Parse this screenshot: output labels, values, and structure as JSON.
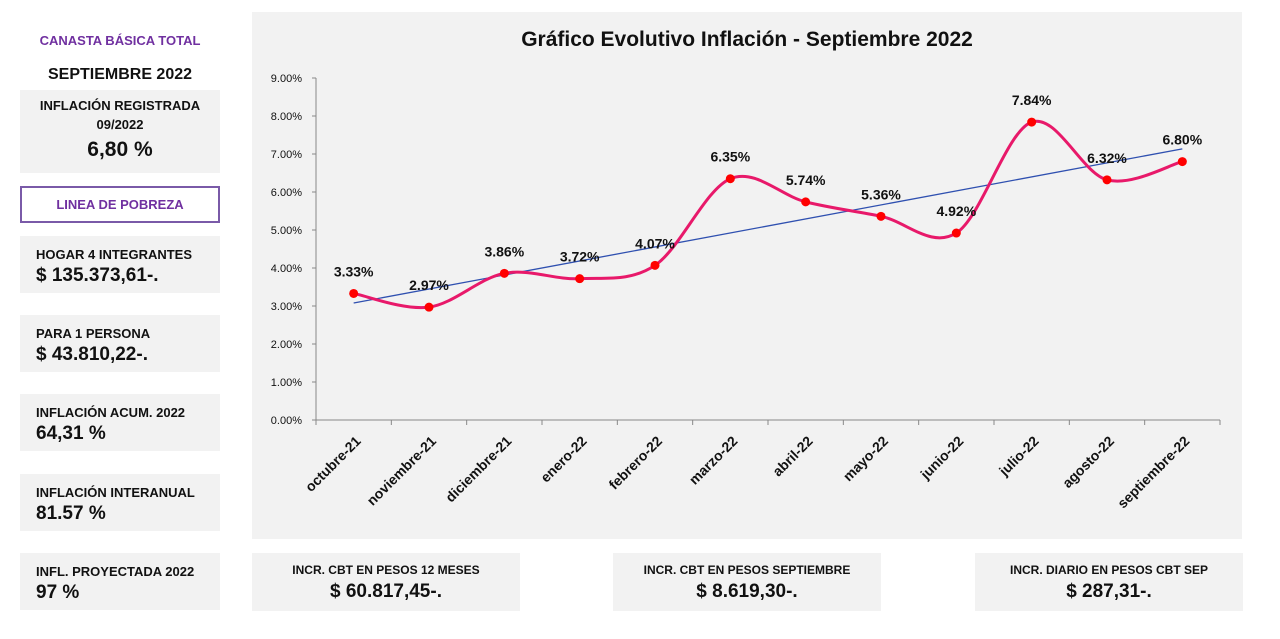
{
  "sidebar": {
    "title": "CANASTA BÁSICA TOTAL",
    "title_color": "#7030a0",
    "period": "SEPTIEMBRE 2022",
    "inflation": {
      "label_line1": "INFLACIÓN REGISTRADA",
      "label_line2": "09/2022",
      "value": "6,80 %"
    },
    "poverty_line": "LINEA DE POBREZA",
    "poverty_color": "#7030a0",
    "cards": [
      {
        "label": "HOGAR 4 INTEGRANTES",
        "value": "$ 135.373,61-."
      },
      {
        "label": "PARA 1 PERSONA",
        "value": "$ 43.810,22-."
      },
      {
        "label": "INFLACIÓN ACUM. 2022",
        "value": "64,31 %"
      },
      {
        "label": "INFLACIÓN INTERANUAL",
        "value": "81.57 %"
      },
      {
        "label": "INFL. PROYECTADA 2022",
        "value": "97 %"
      }
    ]
  },
  "bottom_cards": [
    {
      "label": "INCR. CBT EN PESOS 12 MESES",
      "value": "$ 60.817,45-."
    },
    {
      "label": "INCR. CBT EN PESOS SEPTIEMBRE",
      "value": "$ 8.619,30-."
    },
    {
      "label": "INCR. DIARIO EN PESOS CBT SEP",
      "value": "$ 287,31-."
    }
  ],
  "chart_data": {
    "type": "line",
    "title": "Gráfico Evolutivo Inflación - Septiembre 2022",
    "categories": [
      "octubre-21",
      "noviembre-21",
      "diciembre-21",
      "enero-22",
      "febrero-22",
      "marzo-22",
      "abril-22",
      "mayo-22",
      "junio-22",
      "julio-22",
      "agosto-22",
      "septiembre-22"
    ],
    "series": [
      {
        "values": [
          3.33,
          2.97,
          3.86,
          3.72,
          4.07,
          6.35,
          5.74,
          5.36,
          4.92,
          7.84,
          6.32,
          6.8
        ],
        "data_labels": [
          "3.33%",
          "2.97%",
          "3.86%",
          "3.72%",
          "4.07%",
          "6.35%",
          "5.74%",
          "5.36%",
          "4.92%",
          "7.84%",
          "6.32%",
          "6.80%"
        ],
        "color": "#e8196a",
        "marker_color": "#ff0000",
        "smooth": true
      }
    ],
    "trendline": {
      "type": "linear",
      "color": "#2f50b0"
    },
    "ylim": [
      0,
      9
    ],
    "yticks": [
      "0.00%",
      "1.00%",
      "2.00%",
      "3.00%",
      "4.00%",
      "5.00%",
      "6.00%",
      "7.00%",
      "8.00%",
      "9.00%"
    ],
    "grid": false,
    "legend": "none"
  }
}
